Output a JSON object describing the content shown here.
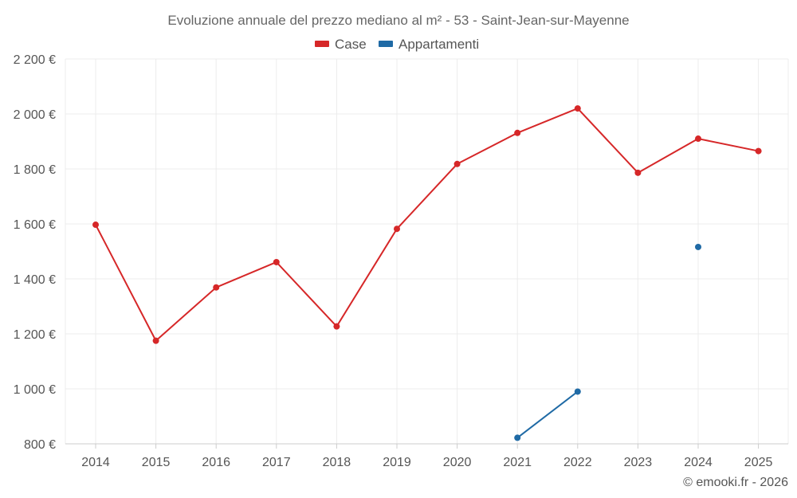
{
  "chart_data": {
    "type": "line",
    "title": "Evoluzione annuale del prezzo mediano al m² - 53 - Saint-Jean-sur-Mayenne",
    "xlabel": "",
    "ylabel": "",
    "categories": [
      "2014",
      "2015",
      "2016",
      "2017",
      "2018",
      "2019",
      "2020",
      "2021",
      "2022",
      "2023",
      "2024",
      "2025"
    ],
    "ylim": [
      800,
      2200
    ],
    "yticks": [
      800,
      1000,
      1200,
      1400,
      1600,
      1800,
      2000,
      2200
    ],
    "ytick_labels": [
      "800 €",
      "1 000 €",
      "1 200 €",
      "1 400 €",
      "1 600 €",
      "1 800 €",
      "2 000 €",
      "2 200 €"
    ],
    "grid": true,
    "legend_position": "top-center",
    "series": [
      {
        "name": "Case",
        "color": "#d62728",
        "values": [
          1597,
          1175,
          1369,
          1461,
          1227,
          1582,
          1818,
          1931,
          2020,
          1786,
          1910,
          1865
        ]
      },
      {
        "name": "Appartamenti",
        "color": "#1f6aa5",
        "values": [
          null,
          null,
          null,
          null,
          null,
          null,
          null,
          822,
          990,
          null,
          1516,
          null
        ]
      }
    ]
  },
  "credit": "© emooki.fr - 2026"
}
